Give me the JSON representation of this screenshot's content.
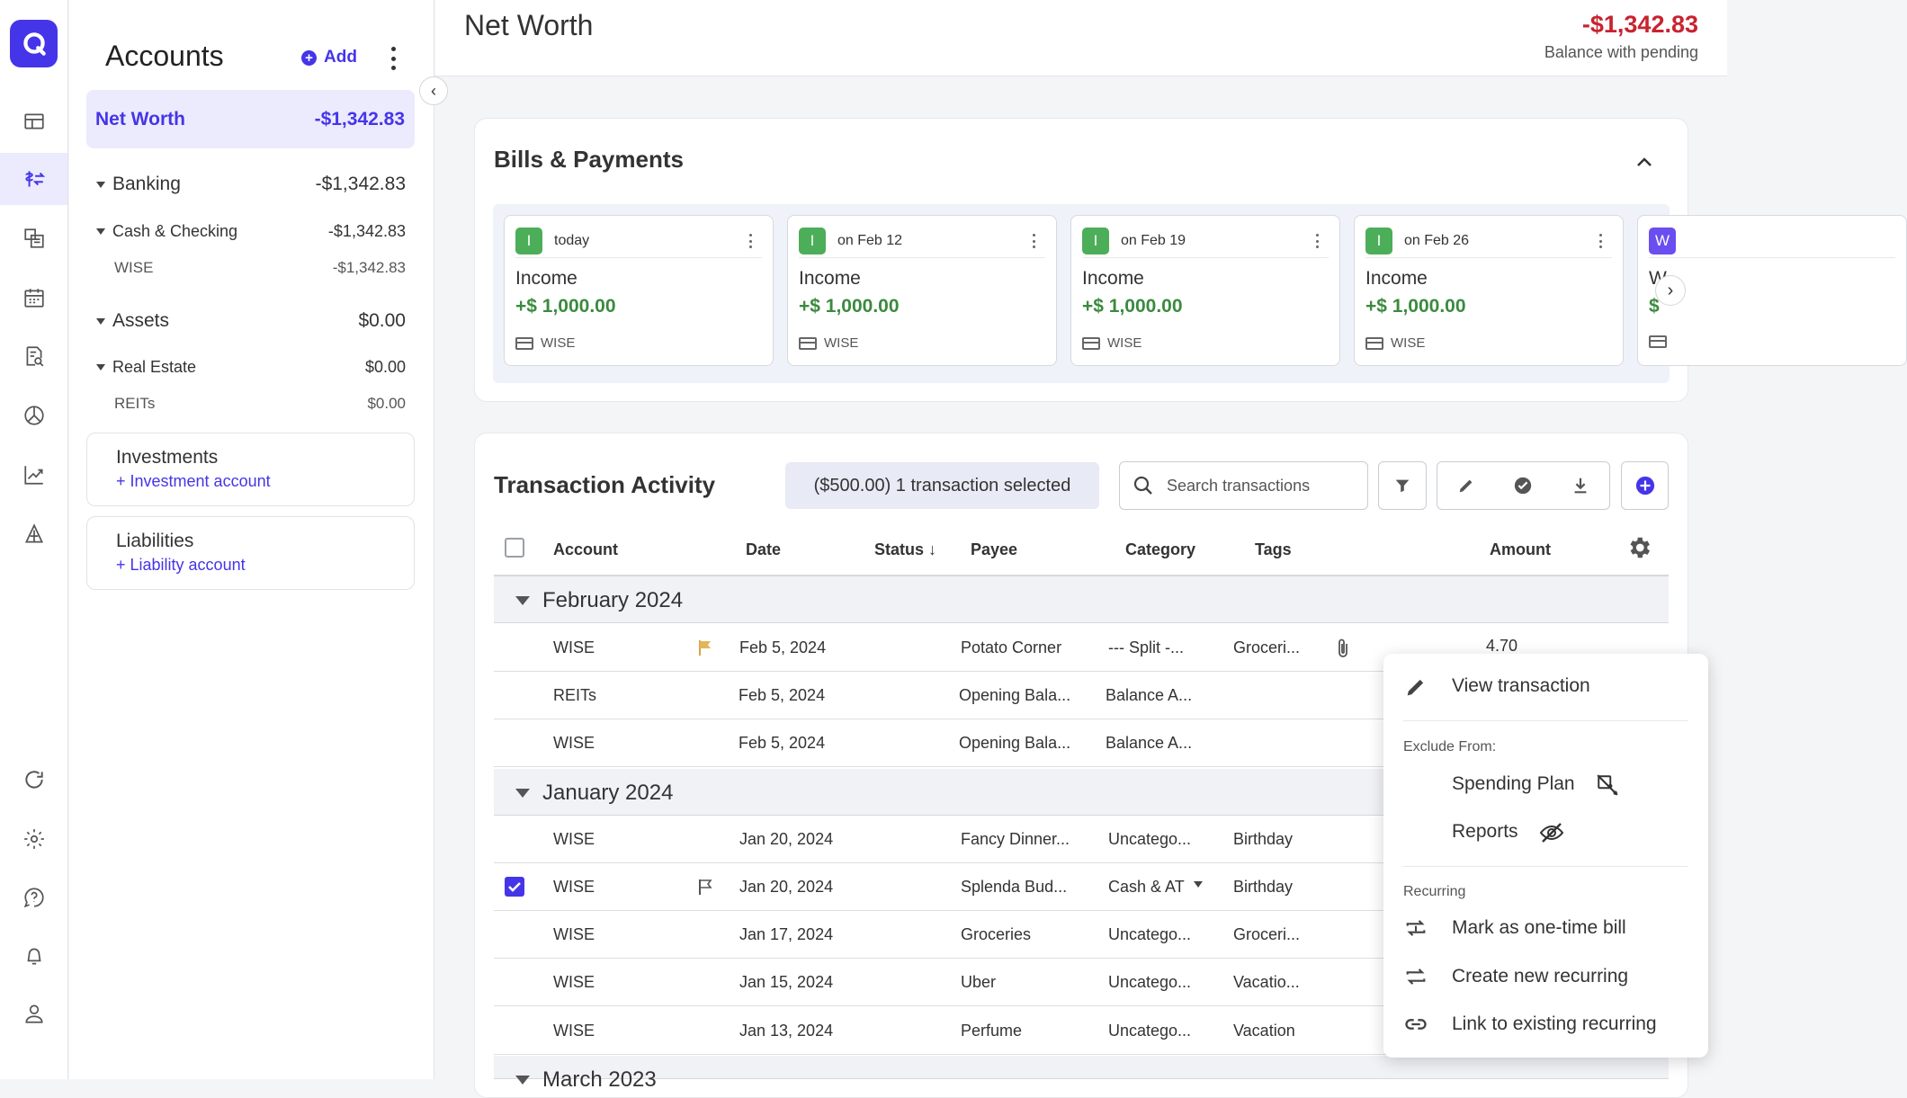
{
  "colors": {
    "accent": "#4535e8",
    "negative": "#c8232f",
    "positive": "#3b8a3f",
    "badge": "#4cae58"
  },
  "rail": {
    "icons": [
      "dashboard-icon",
      "transactions-icon",
      "bills-icon",
      "calendar-icon",
      "reports-icon",
      "spending-plan-icon",
      "investments-icon",
      "property-icon",
      "sync-icon",
      "settings-icon",
      "help-icon",
      "notifications-icon",
      "profile-icon"
    ]
  },
  "sidebar": {
    "title": "Accounts",
    "add_label": "Add",
    "net_worth": {
      "label": "Net Worth",
      "value": "-$1,342.83"
    },
    "banking": {
      "label": "Banking",
      "value": "-$1,342.83"
    },
    "cash_checking": {
      "label": "Cash & Checking",
      "value": "-$1,342.83"
    },
    "wise": {
      "label": "WISE",
      "value": "-$1,342.83"
    },
    "assets": {
      "label": "Assets",
      "value": "$0.00"
    },
    "real_estate": {
      "label": "Real Estate",
      "value": "$0.00"
    },
    "reits": {
      "label": "REITs",
      "value": "$0.00"
    },
    "investments": {
      "title": "Investments",
      "link": "+ Investment account"
    },
    "liabilities": {
      "title": "Liabilities",
      "link": "+ Liability account"
    }
  },
  "header": {
    "title": "Net Worth",
    "balance": "-$1,342.83",
    "balance_label": "Balance with pending"
  },
  "bills": {
    "title": "Bills & Payments",
    "items": [
      {
        "badge": "I",
        "when": "today",
        "name": "Income",
        "amount": "+$ 1,000.00",
        "account": "WISE"
      },
      {
        "badge": "I",
        "when": "on Feb 12",
        "name": "Income",
        "amount": "+$ 1,000.00",
        "account": "WISE"
      },
      {
        "badge": "I",
        "when": "on Feb 19",
        "name": "Income",
        "amount": "+$ 1,000.00",
        "account": "WISE"
      },
      {
        "badge": "I",
        "when": "on Feb 26",
        "name": "Income",
        "amount": "+$ 1,000.00",
        "account": "WISE"
      },
      {
        "badge": "W",
        "when": "",
        "name": "W",
        "amount": "$",
        "account": ""
      }
    ]
  },
  "activity": {
    "title": "Transaction Activity",
    "selection": "($500.00) 1 transaction selected",
    "search_placeholder": "Search transactions",
    "columns": {
      "account": "Account",
      "date": "Date",
      "status": "Status",
      "payee": "Payee",
      "category": "Category",
      "tags": "Tags",
      "amount": "Amount"
    },
    "groups": [
      {
        "label": "February 2024"
      },
      {
        "label": "January 2024"
      },
      {
        "label": "March 2023"
      }
    ],
    "rows": [
      {
        "account": "WISE",
        "date": "Feb 5, 2024",
        "payee": "Potato Corner",
        "category": "--- Split -...",
        "tags": "Groceri...",
        "amount": "4.70"
      },
      {
        "account": "REITs",
        "date": "Feb 5, 2024",
        "payee": "Opening Bala...",
        "category": "Balance A...",
        "tags": "",
        "amount": ""
      },
      {
        "account": "WISE",
        "date": "Feb 5, 2024",
        "payee": "Opening Bala...",
        "category": "Balance A...",
        "tags": "",
        "amount": ""
      },
      {
        "account": "WISE",
        "date": "Jan 20, 2024",
        "payee": "Fancy Dinner...",
        "category": "Uncatego...",
        "tags": "Birthday",
        "amount": ""
      },
      {
        "account": "WISE",
        "date": "Jan 20, 2024",
        "payee": "Splenda Bud...",
        "category": "Cash & AT",
        "tags": "Birthday",
        "amount": ""
      },
      {
        "account": "WISE",
        "date": "Jan 17, 2024",
        "payee": "Groceries",
        "category": "Uncatego...",
        "tags": "Groceri...",
        "amount": ""
      },
      {
        "account": "WISE",
        "date": "Jan 15, 2024",
        "payee": "Uber",
        "category": "Uncatego...",
        "tags": "Vacatio...",
        "amount": ""
      },
      {
        "account": "WISE",
        "date": "Jan 13, 2024",
        "payee": "Perfume",
        "category": "Uncatego...",
        "tags": "Vacation",
        "amount": ""
      }
    ]
  },
  "context_menu": {
    "view": "View transaction",
    "exclude_header": "Exclude From:",
    "spending_plan": "Spending Plan",
    "reports": "Reports",
    "recurring_header": "Recurring",
    "one_time": "Mark as one-time bill",
    "create_recurring": "Create new recurring",
    "link_recurring": "Link to existing recurring"
  }
}
